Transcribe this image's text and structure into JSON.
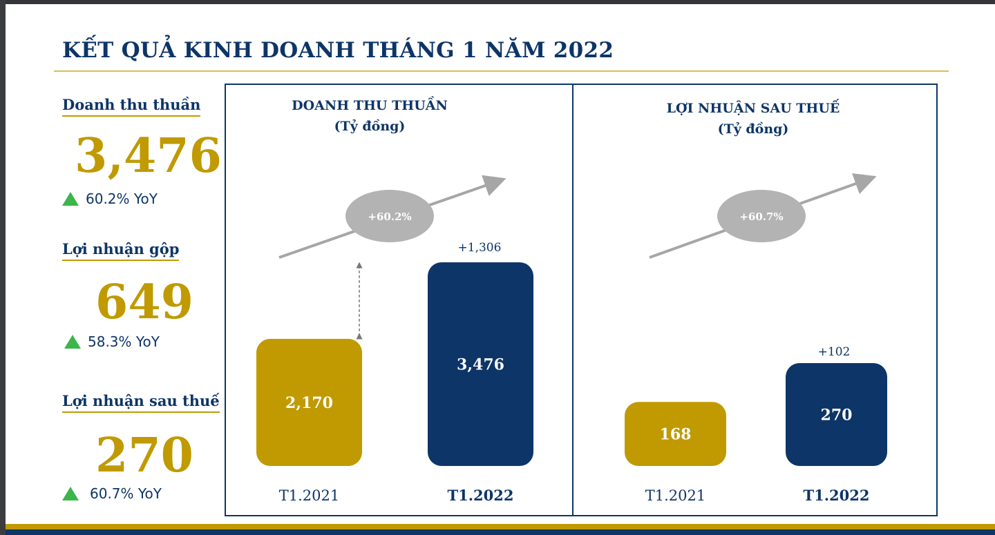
{
  "title": "KẾT QUẢ KINH DOANH THÁNG 1 NĂM 2022",
  "kpis": [
    {
      "label": "Doanh thu thuần",
      "value": "3,476",
      "yoy": "60.2% YoY"
    },
    {
      "label": "Lợi nhuận gộp",
      "value": "649",
      "yoy": "58.3% YoY"
    },
    {
      "label": "Lợi nhuận sau thuế",
      "value": "270",
      "yoy": "60.7% YoY"
    }
  ],
  "colors": {
    "navy": "#0d3567",
    "gold": "#c09a00",
    "up": "#3cb54a",
    "growth_bubble": "#b3b3b3"
  },
  "chart_data": [
    {
      "type": "bar",
      "title": "DOANH THU THUẦN",
      "subtitle": "(Tỷ đồng)",
      "categories": [
        "T1.2021",
        "T1.2022"
      ],
      "values": [
        2170,
        3476
      ],
      "value_labels": [
        "2,170",
        "3,476"
      ],
      "difference_label": "+1,306",
      "growth_label": "+60.2%",
      "bar_colors": [
        "#c09a00",
        "#0d3567"
      ]
    },
    {
      "type": "bar",
      "title": "LỢI NHUẬN SAU THUẾ",
      "subtitle": "(Tỷ đồng)",
      "categories": [
        "T1.2021",
        "T1.2022"
      ],
      "values": [
        168,
        270
      ],
      "value_labels": [
        "168",
        "270"
      ],
      "difference_label": "+102",
      "growth_label": "+60.7%",
      "bar_colors": [
        "#c09a00",
        "#0d3567"
      ]
    }
  ]
}
